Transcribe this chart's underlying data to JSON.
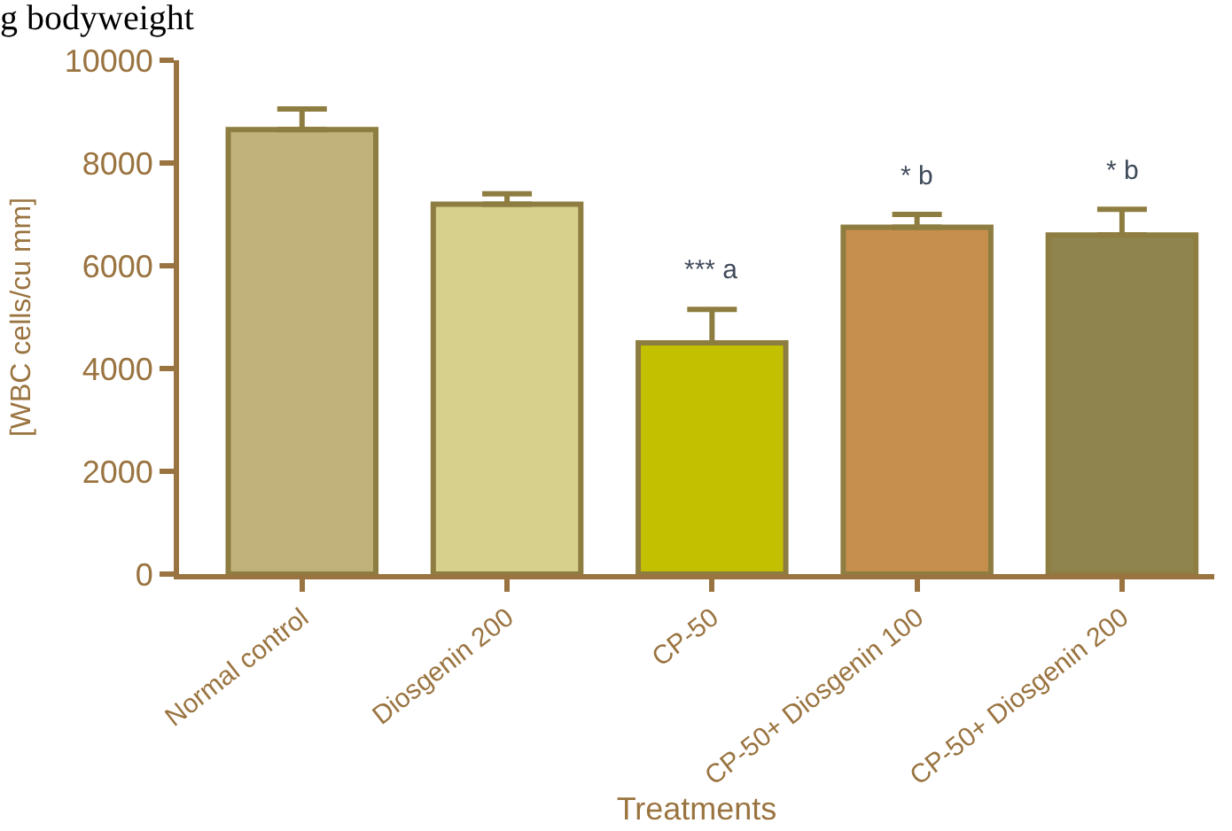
{
  "chart_data": {
    "type": "bar",
    "title": "g bodyweight",
    "xlabel": "Treatments",
    "ylabel": "[WBC cells/cu mm]",
    "categories": [
      "Normal control",
      "Diosgenin 200",
      "CP-50",
      "CP-50+ Diosgenin 100",
      "CP-50+ Diosgenin 200"
    ],
    "values": [
      8650,
      7200,
      4500,
      6750,
      6600
    ],
    "errors": [
      400,
      200,
      650,
      250,
      500
    ],
    "colors": [
      "#c0b27a",
      "#d6d08c",
      "#c3c000",
      "#c78f4e",
      "#8f844e"
    ],
    "ylim": [
      0,
      10000
    ],
    "yticks": [
      0,
      2000,
      4000,
      6000,
      8000,
      10000
    ],
    "legend": false,
    "value_labels": [
      null,
      null,
      "*** a",
      "* b",
      "* b"
    ]
  }
}
